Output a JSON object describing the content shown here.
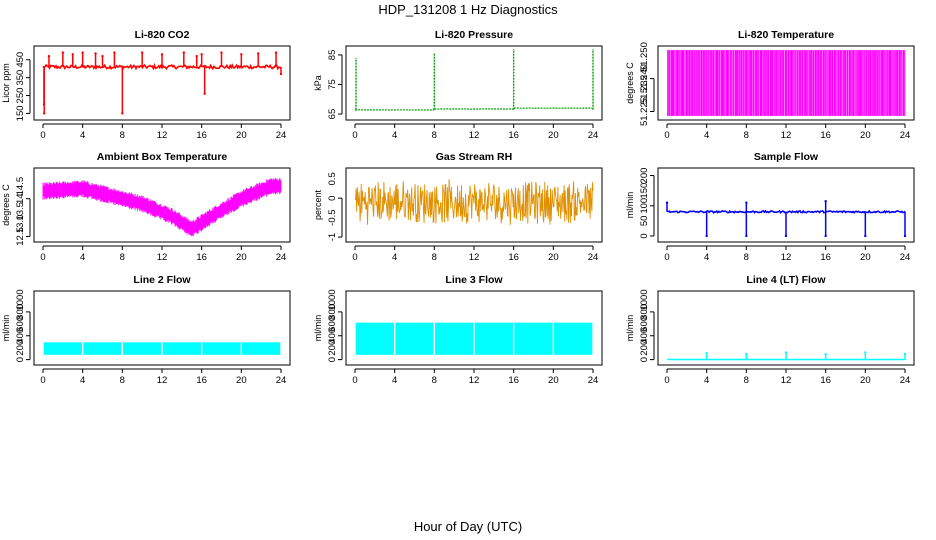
{
  "figure": {
    "title": "HDP_131208  1 Hz Diagnostics",
    "xlabel": "Hour of Day (UTC)"
  },
  "chart_data": [
    {
      "type": "line",
      "title": "Li-820 CO2",
      "ylabel": "Licor ppm",
      "color": "#ff0000",
      "x_ticks": [
        0,
        4,
        8,
        12,
        16,
        20,
        24
      ],
      "y_ticks": [
        150,
        250,
        350,
        450
      ],
      "xlim": [
        0,
        24
      ],
      "ylim": [
        130,
        510
      ],
      "pattern": "spiky",
      "base": 410,
      "noise": 10,
      "spikes": [
        {
          "x": 0.1,
          "y": 200
        },
        {
          "x": 0.12,
          "y": 150
        },
        {
          "x": 0.6,
          "y": 470
        },
        {
          "x": 2,
          "y": 490
        },
        {
          "x": 3,
          "y": 480
        },
        {
          "x": 4,
          "y": 490
        },
        {
          "x": 5.3,
          "y": 485
        },
        {
          "x": 6,
          "y": 470
        },
        {
          "x": 7.2,
          "y": 490
        },
        {
          "x": 8,
          "y": 150
        },
        {
          "x": 10,
          "y": 490
        },
        {
          "x": 12,
          "y": 480
        },
        {
          "x": 14.2,
          "y": 490
        },
        {
          "x": 15.5,
          "y": 470
        },
        {
          "x": 16,
          "y": 480
        },
        {
          "x": 16.3,
          "y": 260
        },
        {
          "x": 18,
          "y": 490
        },
        {
          "x": 20,
          "y": 480
        },
        {
          "x": 21.7,
          "y": 485
        },
        {
          "x": 23.5,
          "y": 490
        },
        {
          "x": 24,
          "y": 370
        }
      ]
    },
    {
      "type": "line",
      "title": "Li-820 Pressure",
      "ylabel": "kPa",
      "color": "#00a000",
      "x_ticks": [
        0,
        4,
        8,
        12,
        16,
        20,
        24
      ],
      "y_ticks": [
        65,
        75,
        85
      ],
      "xlim": [
        0,
        24
      ],
      "ylim": [
        64,
        87
      ],
      "pattern": "stepped",
      "base": 66.5,
      "noise": 0.05,
      "segments": [
        {
          "x0": 0,
          "x1": 8,
          "y": 66.4
        },
        {
          "x0": 8,
          "x1": 16,
          "y": 66.7
        },
        {
          "x0": 16,
          "x1": 24,
          "y": 67.0
        }
      ],
      "spikes": [
        {
          "x": 0.1,
          "y": 84
        },
        {
          "x": 8,
          "y": 85.5
        },
        {
          "x": 16,
          "y": 87
        },
        {
          "x": 24,
          "y": 87
        }
      ]
    },
    {
      "type": "line",
      "title": "Li-820 Temperature",
      "ylabel": "degrees C",
      "color": "#ff00ff",
      "x_ticks": [
        0,
        4,
        8,
        12,
        16,
        20,
        24
      ],
      "y_ticks": [
        51.225,
        51.24
      ],
      "y_tick_labels": [
        "51.225",
        "51.240"
      ],
      "extra_y_labels": [
        "51.235",
        "51.250"
      ],
      "xlim": [
        0,
        24
      ],
      "ylim": [
        51.2225,
        51.2535
      ],
      "pattern": "toggle"
    },
    {
      "type": "line",
      "title": "Ambient Box Temperature",
      "ylabel": "degrees C",
      "color": "#ff00ff",
      "x_ticks": [
        0,
        4,
        8,
        12,
        16,
        20,
        24
      ],
      "y_ticks": [
        12.5,
        14.0
      ],
      "extra_y_labels": [
        "13.0",
        "13.5",
        "14.5"
      ],
      "xlim": [
        0,
        24
      ],
      "ylim": [
        12.4,
        15.1
      ],
      "pattern": "band",
      "band_width": 0.55,
      "curve": [
        {
          "x": 0,
          "y": 14.3
        },
        {
          "x": 4,
          "y": 14.4
        },
        {
          "x": 6,
          "y": 14.2
        },
        {
          "x": 10,
          "y": 13.8
        },
        {
          "x": 13,
          "y": 13.3
        },
        {
          "x": 15,
          "y": 12.8
        },
        {
          "x": 17,
          "y": 13.3
        },
        {
          "x": 20,
          "y": 14.0
        },
        {
          "x": 23,
          "y": 14.5
        },
        {
          "x": 24,
          "y": 14.5
        }
      ]
    },
    {
      "type": "line",
      "title": "Gas Stream RH",
      "ylabel": "percent",
      "color": "#e09000",
      "x_ticks": [
        0,
        4,
        8,
        12,
        16,
        20,
        24
      ],
      "y_ticks": [
        -1.0,
        0.0
      ],
      "extra_y_labels": [
        "-0.5",
        "0.5"
      ],
      "xlim": [
        0,
        24
      ],
      "ylim": [
        -1.05,
        0.7
      ],
      "pattern": "noisy",
      "base": -0.1,
      "noise": 0.6
    },
    {
      "type": "line",
      "title": "Sample Flow",
      "ylabel": "ml/min",
      "color": "#0000ff",
      "x_ticks": [
        0,
        4,
        8,
        12,
        16,
        20,
        24
      ],
      "y_ticks": [
        0,
        100,
        200
      ],
      "extra_y_labels": [
        "50",
        "150"
      ],
      "xlim": [
        0,
        24
      ],
      "ylim": [
        -10,
        215
      ],
      "pattern": "spiky",
      "base": 80,
      "noise": 3,
      "spikes": [
        {
          "x": 0,
          "y": 110
        },
        {
          "x": 4,
          "y": 0
        },
        {
          "x": 8,
          "y": 110
        },
        {
          "x": 8,
          "y": 0
        },
        {
          "x": 12,
          "y": 0
        },
        {
          "x": 16,
          "y": 115
        },
        {
          "x": 16,
          "y": 0
        },
        {
          "x": 20,
          "y": 0
        },
        {
          "x": 24,
          "y": 0
        }
      ]
    },
    {
      "type": "line",
      "title": "Line 2 Flow",
      "ylabel": "ml/min",
      "color": "#00ffff",
      "x_ticks": [
        0,
        4,
        8,
        12,
        16,
        20,
        24
      ],
      "y_ticks": [
        0,
        400,
        800
      ],
      "extra_y_labels": [
        "200",
        "600",
        "1000"
      ],
      "xlim": [
        0,
        24
      ],
      "ylim": [
        -40,
        1100
      ],
      "pattern": "block",
      "low": 80,
      "high": 290,
      "gaps": [
        4,
        8,
        12,
        16,
        20
      ]
    },
    {
      "type": "line",
      "title": "Line 3 Flow",
      "ylabel": "ml/min",
      "color": "#00ffff",
      "x_ticks": [
        0,
        4,
        8,
        12,
        16,
        20,
        24
      ],
      "y_ticks": [
        0,
        400,
        800
      ],
      "extra_y_labels": [
        "200",
        "600",
        "1000"
      ],
      "xlim": [
        0,
        24
      ],
      "ylim": [
        -40,
        1100
      ],
      "pattern": "block",
      "low": 80,
      "high": 620,
      "gaps": [
        4,
        8,
        12,
        16,
        20
      ]
    },
    {
      "type": "line",
      "title": "Line 4 (LT) Flow",
      "ylabel": "ml/min",
      "color": "#00ffff",
      "x_ticks": [
        0,
        4,
        8,
        12,
        16,
        20,
        24
      ],
      "y_ticks": [
        0,
        400,
        800
      ],
      "extra_y_labels": [
        "200",
        "600",
        "1000"
      ],
      "xlim": [
        0,
        24
      ],
      "ylim": [
        -40,
        1100
      ],
      "pattern": "spiky",
      "base": 2,
      "noise": 0,
      "spikes": [
        {
          "x": 4,
          "y": 110
        },
        {
          "x": 8,
          "y": 95
        },
        {
          "x": 12,
          "y": 120
        },
        {
          "x": 16,
          "y": 90
        },
        {
          "x": 20,
          "y": 120
        },
        {
          "x": 24,
          "y": 95
        }
      ]
    }
  ]
}
